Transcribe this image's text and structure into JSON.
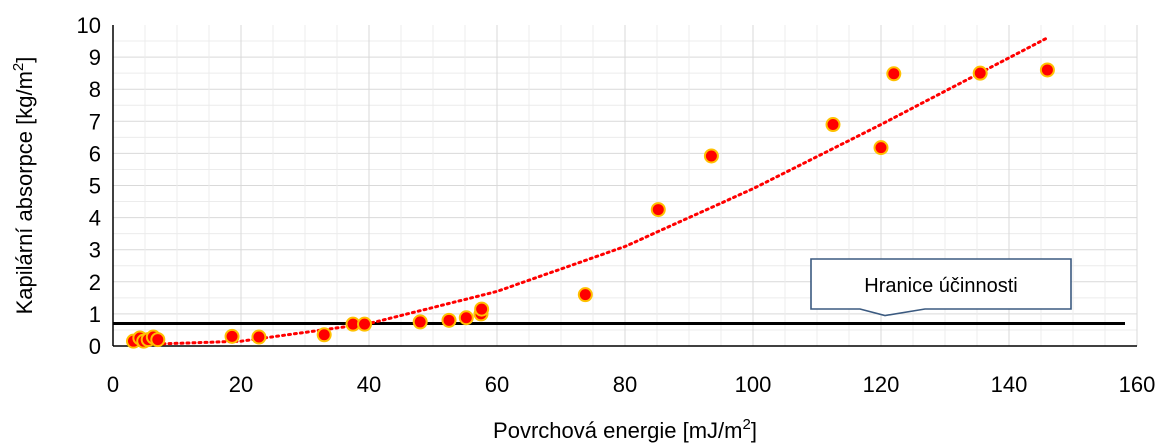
{
  "chart_data": {
    "type": "scatter",
    "xlabel": "Povrchová energie [mJ/m",
    "xlabel_sup": "2",
    "xlabel_end": "]",
    "ylabel": "Kapilární absorpce [kg/m",
    "ylabel_sup": "2",
    "ylabel_end": "]",
    "xlim": [
      0,
      160
    ],
    "ylim": [
      0,
      10
    ],
    "xticks": [
      0,
      20,
      40,
      60,
      80,
      100,
      120,
      140,
      160
    ],
    "yticks": [
      0,
      1,
      2,
      3,
      4,
      5,
      6,
      7,
      8,
      9,
      10
    ],
    "grid": true,
    "marker_color": "#ff0000",
    "marker_edge": "#ffc000",
    "trendline": {
      "style": "dotted",
      "color": "#ff0000",
      "x": [
        5,
        20,
        40,
        60,
        80,
        100,
        120,
        146
      ],
      "y": [
        0.05,
        0.15,
        0.7,
        1.7,
        3.1,
        4.9,
        6.9,
        9.6
      ]
    },
    "threshold": {
      "label": "Hranice účinnosti",
      "y": 0.7,
      "color": "#000000"
    },
    "series": [
      {
        "x": [
          3.2,
          4.2,
          4.8,
          5.5,
          6.3,
          7.0,
          18.6,
          22.8,
          33.0,
          37.5,
          39.3,
          48.0,
          52.5,
          55.2,
          57.5,
          57.6,
          73.8,
          85.2,
          93.5,
          112.5,
          120.0,
          122.0,
          135.5,
          146.0
        ],
        "y": [
          0.15,
          0.25,
          0.15,
          0.2,
          0.28,
          0.2,
          0.3,
          0.28,
          0.35,
          0.68,
          0.68,
          0.75,
          0.8,
          0.88,
          1.0,
          1.15,
          1.6,
          4.25,
          5.92,
          6.9,
          6.18,
          8.48,
          8.5,
          8.6
        ]
      }
    ]
  }
}
